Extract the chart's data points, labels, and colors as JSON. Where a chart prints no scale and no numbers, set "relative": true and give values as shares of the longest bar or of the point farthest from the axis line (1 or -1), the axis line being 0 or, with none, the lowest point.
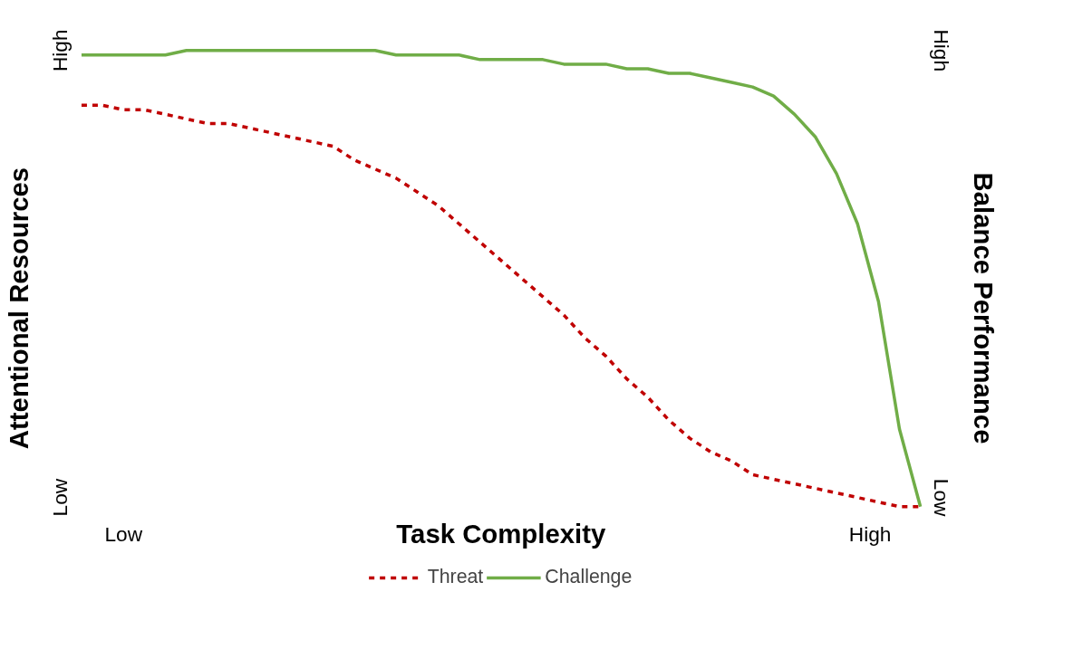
{
  "chart_data": {
    "type": "line",
    "relative": true,
    "xlabel": "Task Complexity",
    "ylabel": "Attentional Resources",
    "y2label": "Balance Performance",
    "annotations": [
      "Low",
      "High",
      "Low",
      "High",
      "Low",
      "High"
    ],
    "categories": [
      null,
      null,
      null,
      null,
      null,
      null,
      null,
      null,
      null,
      null,
      null,
      null,
      null,
      null,
      null,
      null,
      null,
      null,
      null,
      null,
      null,
      null,
      null,
      null,
      null,
      null,
      null,
      null,
      null,
      null,
      null,
      null,
      null,
      null,
      null,
      null,
      null,
      null,
      null,
      null,
      null
    ],
    "grid": false,
    "legend": "bottom",
    "series": [
      {
        "name": "Threat",
        "color": "#c00000",
        "line_style": "dashed",
        "values": [
          0.88,
          0.88,
          0.87,
          0.87,
          0.86,
          0.85,
          0.84,
          0.84,
          0.83,
          0.82,
          0.81,
          0.8,
          0.79,
          0.76,
          0.74,
          0.72,
          0.69,
          0.66,
          0.62,
          0.58,
          0.54,
          0.5,
          0.46,
          0.42,
          0.37,
          0.33,
          0.28,
          0.24,
          0.19,
          0.15,
          0.12,
          0.1,
          0.07,
          0.06,
          0.05,
          0.04,
          0.03,
          0.02,
          0.01,
          0.0,
          0.0
        ]
      },
      {
        "name": "Challenge",
        "color": "#70ad47",
        "line_style": "solid",
        "values": [
          0.99,
          0.99,
          0.99,
          0.99,
          0.99,
          1.0,
          1.0,
          1.0,
          1.0,
          1.0,
          1.0,
          1.0,
          1.0,
          1.0,
          1.0,
          0.99,
          0.99,
          0.99,
          0.99,
          0.98,
          0.98,
          0.98,
          0.98,
          0.97,
          0.97,
          0.97,
          0.96,
          0.96,
          0.95,
          0.95,
          0.94,
          0.93,
          0.92,
          0.9,
          0.86,
          0.81,
          0.73,
          0.62,
          0.45,
          0.17,
          0.0
        ]
      }
    ]
  }
}
